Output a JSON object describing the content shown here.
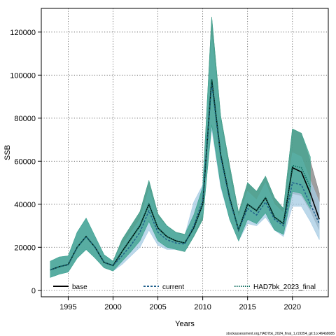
{
  "chart_data": {
    "type": "line",
    "xlabel": "Years",
    "ylabel": "SSB",
    "xlim": [
      1992,
      2024
    ],
    "ylim": [
      -3000,
      131000
    ],
    "xticks": [
      1995,
      2000,
      2005,
      2010,
      2015,
      2020
    ],
    "yticks": [
      0,
      20000,
      40000,
      60000,
      80000,
      100000,
      120000
    ],
    "grid": true,
    "legend_position": "bottom",
    "series": [
      {
        "name": "base",
        "color": "#000000",
        "dash": "solid",
        "x": [
          1993,
          1994,
          1995,
          1996,
          1997,
          1998,
          1999,
          2000,
          2001,
          2002,
          2003,
          2004,
          2005,
          2006,
          2007,
          2008,
          2009,
          2010,
          2011,
          2012,
          2013,
          2014,
          2015,
          2016,
          2017,
          2018,
          2019,
          2020,
          2021,
          2022,
          2023
        ],
        "y": [
          9500,
          11000,
          12000,
          20000,
          25000,
          20000,
          13000,
          11500,
          18000,
          24000,
          30000,
          40000,
          29000,
          25000,
          23000,
          22000,
          29000,
          40000,
          98000,
          63000,
          43000,
          28000,
          40000,
          37000,
          43000,
          34000,
          31000,
          57000,
          55000,
          45000,
          33000
        ],
        "band_low": [
          6000,
          7500,
          8500,
          15000,
          19000,
          15000,
          10500,
          9000,
          13500,
          18000,
          23000,
          32000,
          23000,
          20000,
          19000,
          18000,
          25000,
          33000,
          77000,
          49000,
          33000,
          23000,
          33000,
          31000,
          36000,
          28000,
          26000,
          45000,
          44000,
          37000,
          28000
        ],
        "band_high": [
          13500,
          15500,
          16000,
          27000,
          33500,
          25000,
          16500,
          13500,
          23500,
          30000,
          36500,
          51000,
          35500,
          30000,
          27000,
          26000,
          35000,
          48000,
          127000,
          81000,
          58000,
          36000,
          50000,
          46000,
          53000,
          43000,
          38000,
          75000,
          73000,
          60000,
          45000
        ],
        "band_color": "#7f7f7f"
      },
      {
        "name": "current",
        "color": "#1f5f8b",
        "dash": "dashed",
        "x": [
          1993,
          1994,
          1995,
          1996,
          1997,
          1998,
          1999,
          2000,
          2001,
          2002,
          2003,
          2004,
          2005,
          2006,
          2007,
          2008,
          2009,
          2010,
          2011,
          2012,
          2013,
          2014,
          2015,
          2016,
          2017,
          2018,
          2019,
          2020,
          2021,
          2022,
          2023
        ],
        "y": [
          9500,
          11000,
          12000,
          20000,
          25000,
          20000,
          13000,
          11500,
          16000,
          21000,
          27000,
          37000,
          27000,
          23500,
          22000,
          21500,
          30000,
          42000,
          96000,
          62000,
          42000,
          28000,
          38000,
          35000,
          41000,
          33000,
          30000,
          50000,
          49000,
          40000,
          31000
        ],
        "band_low": [
          6000,
          7500,
          8500,
          15000,
          19000,
          15000,
          10500,
          9000,
          12000,
          16000,
          20000,
          28000,
          21000,
          19000,
          19000,
          18500,
          26000,
          36000,
          75000,
          48000,
          33000,
          23000,
          31000,
          30000,
          34000,
          28000,
          25000,
          39000,
          39000,
          32000,
          23500
        ],
        "band_high": [
          13500,
          15500,
          16000,
          27000,
          33500,
          25000,
          16500,
          13500,
          21000,
          27000,
          33000,
          47000,
          34000,
          29500,
          26500,
          25500,
          41000,
          49000,
          118000,
          78000,
          53000,
          34000,
          46000,
          42000,
          50000,
          40000,
          36000,
          64000,
          62000,
          51000,
          41000
        ],
        "band_color": "#a6cbe3"
      },
      {
        "name": "HAD7bk_2023_final",
        "color": "#0b6b5c",
        "dash": "dotted",
        "x": [
          1993,
          1994,
          1995,
          1996,
          1997,
          1998,
          1999,
          2000,
          2001,
          2002,
          2003,
          2004,
          2005,
          2006,
          2007,
          2008,
          2009,
          2010,
          2011,
          2012,
          2013,
          2014,
          2015,
          2016,
          2017,
          2018,
          2019,
          2020,
          2021,
          2022
        ],
        "y": [
          9500,
          11000,
          12000,
          20000,
          25000,
          20000,
          13000,
          11500,
          18000,
          24000,
          30000,
          40000,
          29000,
          25000,
          23000,
          22000,
          29000,
          40000,
          98000,
          63000,
          43000,
          28000,
          40000,
          37000,
          43000,
          34000,
          31000,
          58000,
          57000,
          48000
        ],
        "band_low": [
          6000,
          7500,
          8500,
          15000,
          19000,
          15000,
          10500,
          9000,
          13500,
          18000,
          23000,
          32000,
          23000,
          20000,
          19000,
          18000,
          25000,
          33000,
          77000,
          49000,
          33000,
          23000,
          33000,
          31000,
          36000,
          28000,
          26000,
          46000,
          45000,
          38000
        ],
        "band_high": [
          13500,
          15500,
          16000,
          27000,
          33500,
          25000,
          16500,
          13500,
          23500,
          30000,
          36500,
          51000,
          35500,
          30000,
          27000,
          26000,
          35000,
          48000,
          127000,
          81000,
          58000,
          36000,
          50000,
          46000,
          53000,
          43000,
          38000,
          75000,
          73000,
          62000
        ],
        "band_color": "#3aa58f"
      }
    ]
  },
  "source_note": "stockassessment.org,HAD7bk_2024_final_1,r19354_git:1cc464b8085"
}
